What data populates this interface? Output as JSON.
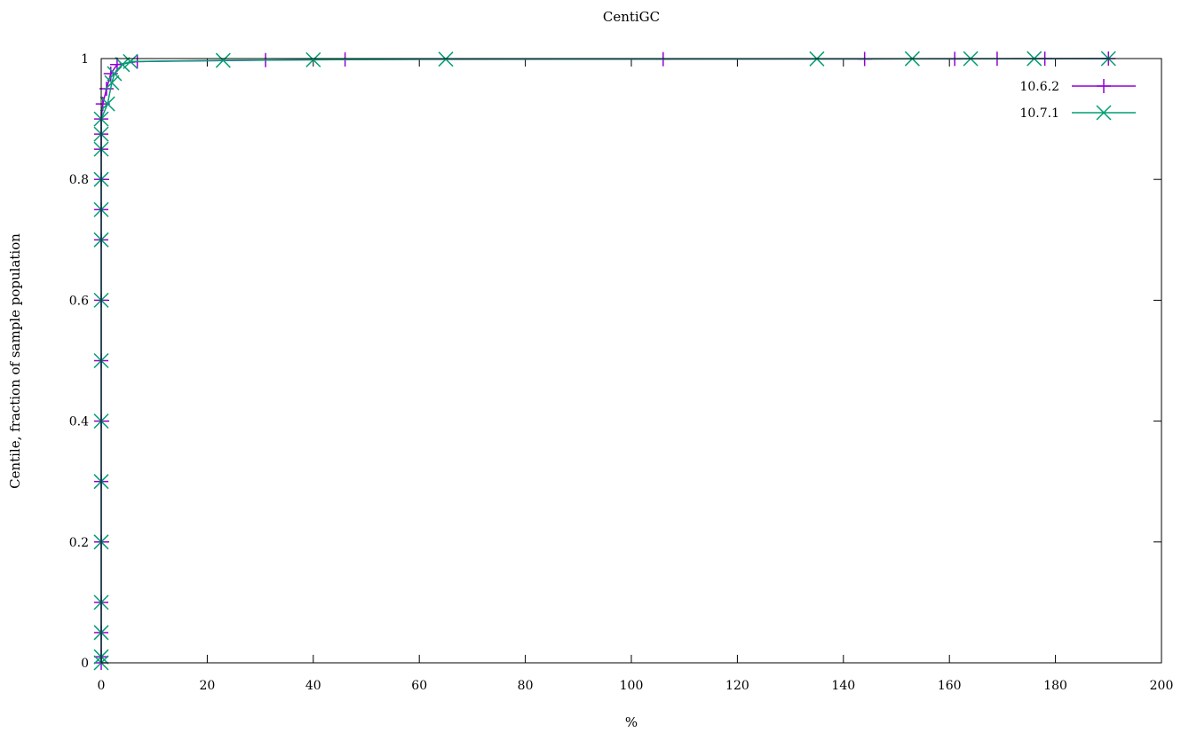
{
  "chart_data": {
    "type": "line",
    "title": "CentiGC",
    "xlabel": "%",
    "ylabel": "Centile, fraction of sample population",
    "xlim": [
      0,
      200
    ],
    "ylim": [
      0,
      1
    ],
    "x_ticks": [
      0,
      20,
      40,
      60,
      80,
      100,
      120,
      140,
      160,
      180,
      200
    ],
    "y_ticks": [
      0,
      0.2,
      0.4,
      0.6,
      0.8,
      1
    ],
    "x_tick_labels": [
      "0",
      "20",
      "40",
      "60",
      "80",
      "100",
      "120",
      "140",
      "160",
      "180",
      "200"
    ],
    "y_tick_labels": [
      "0",
      "0.2",
      "0.4",
      "0.6",
      "0.8",
      "1"
    ],
    "grid": false,
    "legend_position": "top-right",
    "series": [
      {
        "name": "10.6.2",
        "color": "#9400d3",
        "marker": "plus",
        "points": [
          [
            0,
            0
          ],
          [
            0,
            0.01
          ],
          [
            0,
            0.05
          ],
          [
            0,
            0.1
          ],
          [
            0,
            0.2
          ],
          [
            0,
            0.3
          ],
          [
            0,
            0.4
          ],
          [
            0,
            0.5
          ],
          [
            0,
            0.6
          ],
          [
            0,
            0.7
          ],
          [
            0,
            0.75
          ],
          [
            0,
            0.8
          ],
          [
            0,
            0.85
          ],
          [
            0,
            0.875
          ],
          [
            0,
            0.9
          ],
          [
            0.3,
            0.925
          ],
          [
            1,
            0.95
          ],
          [
            1.8,
            0.975
          ],
          [
            3,
            0.99
          ],
          [
            6.8,
            0.995
          ],
          [
            31,
            0.9975
          ],
          [
            46,
            0.9985
          ],
          [
            106,
            0.999
          ],
          [
            144,
            0.9993
          ],
          [
            161,
            0.9995
          ],
          [
            169,
            0.9997
          ],
          [
            178,
            0.9998
          ],
          [
            190,
            1
          ]
        ]
      },
      {
        "name": "10.7.1",
        "color": "#009e73",
        "marker": "cross",
        "points": [
          [
            0,
            0
          ],
          [
            0,
            0.01
          ],
          [
            0,
            0.05
          ],
          [
            0,
            0.1
          ],
          [
            0,
            0.2
          ],
          [
            0,
            0.3
          ],
          [
            0,
            0.4
          ],
          [
            0,
            0.5
          ],
          [
            0,
            0.6
          ],
          [
            0,
            0.7
          ],
          [
            0,
            0.75
          ],
          [
            0,
            0.8
          ],
          [
            0,
            0.85
          ],
          [
            0,
            0.875
          ],
          [
            0,
            0.9
          ],
          [
            1.2,
            0.925
          ],
          [
            2,
            0.96
          ],
          [
            2.5,
            0.975
          ],
          [
            4,
            0.99
          ],
          [
            5.5,
            0.995
          ],
          [
            23,
            0.997
          ],
          [
            40,
            0.998
          ],
          [
            65,
            0.999
          ],
          [
            135,
            0.9995
          ],
          [
            153,
            0.9997
          ],
          [
            164,
            0.9998
          ],
          [
            176,
            0.9999
          ],
          [
            190,
            1
          ]
        ]
      }
    ]
  }
}
